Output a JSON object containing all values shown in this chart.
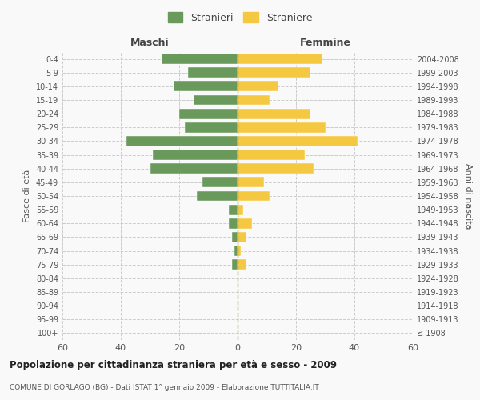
{
  "age_groups": [
    "100+",
    "95-99",
    "90-94",
    "85-89",
    "80-84",
    "75-79",
    "70-74",
    "65-69",
    "60-64",
    "55-59",
    "50-54",
    "45-49",
    "40-44",
    "35-39",
    "30-34",
    "25-29",
    "20-24",
    "15-19",
    "10-14",
    "5-9",
    "0-4"
  ],
  "birth_years": [
    "≤ 1908",
    "1909-1913",
    "1914-1918",
    "1919-1923",
    "1924-1928",
    "1929-1933",
    "1934-1938",
    "1939-1943",
    "1944-1948",
    "1949-1953",
    "1954-1958",
    "1959-1963",
    "1964-1968",
    "1969-1973",
    "1974-1978",
    "1979-1983",
    "1984-1988",
    "1989-1993",
    "1994-1998",
    "1999-2003",
    "2004-2008"
  ],
  "males": [
    0,
    0,
    0,
    0,
    0,
    2,
    1,
    2,
    3,
    3,
    14,
    12,
    30,
    29,
    38,
    18,
    20,
    15,
    22,
    17,
    26
  ],
  "females": [
    0,
    0,
    0,
    0,
    0,
    3,
    1,
    3,
    5,
    2,
    11,
    9,
    26,
    23,
    41,
    30,
    25,
    11,
    14,
    25,
    29
  ],
  "male_color": "#6a9a5b",
  "female_color": "#f5c842",
  "background_color": "#f9f9f9",
  "grid_color": "#cccccc",
  "title": "Popolazione per cittadinanza straniera per età e sesso - 2009",
  "subtitle": "COMUNE DI GORLAGO (BG) - Dati ISTAT 1° gennaio 2009 - Elaborazione TUTTITALIA.IT",
  "left_label": "Maschi",
  "right_label": "Femmine",
  "ylabel_left": "Fasce di età",
  "ylabel_right": "Anni di nascita",
  "legend_male": "Stranieri",
  "legend_female": "Straniere",
  "xlim": 60,
  "bar_height": 0.75
}
